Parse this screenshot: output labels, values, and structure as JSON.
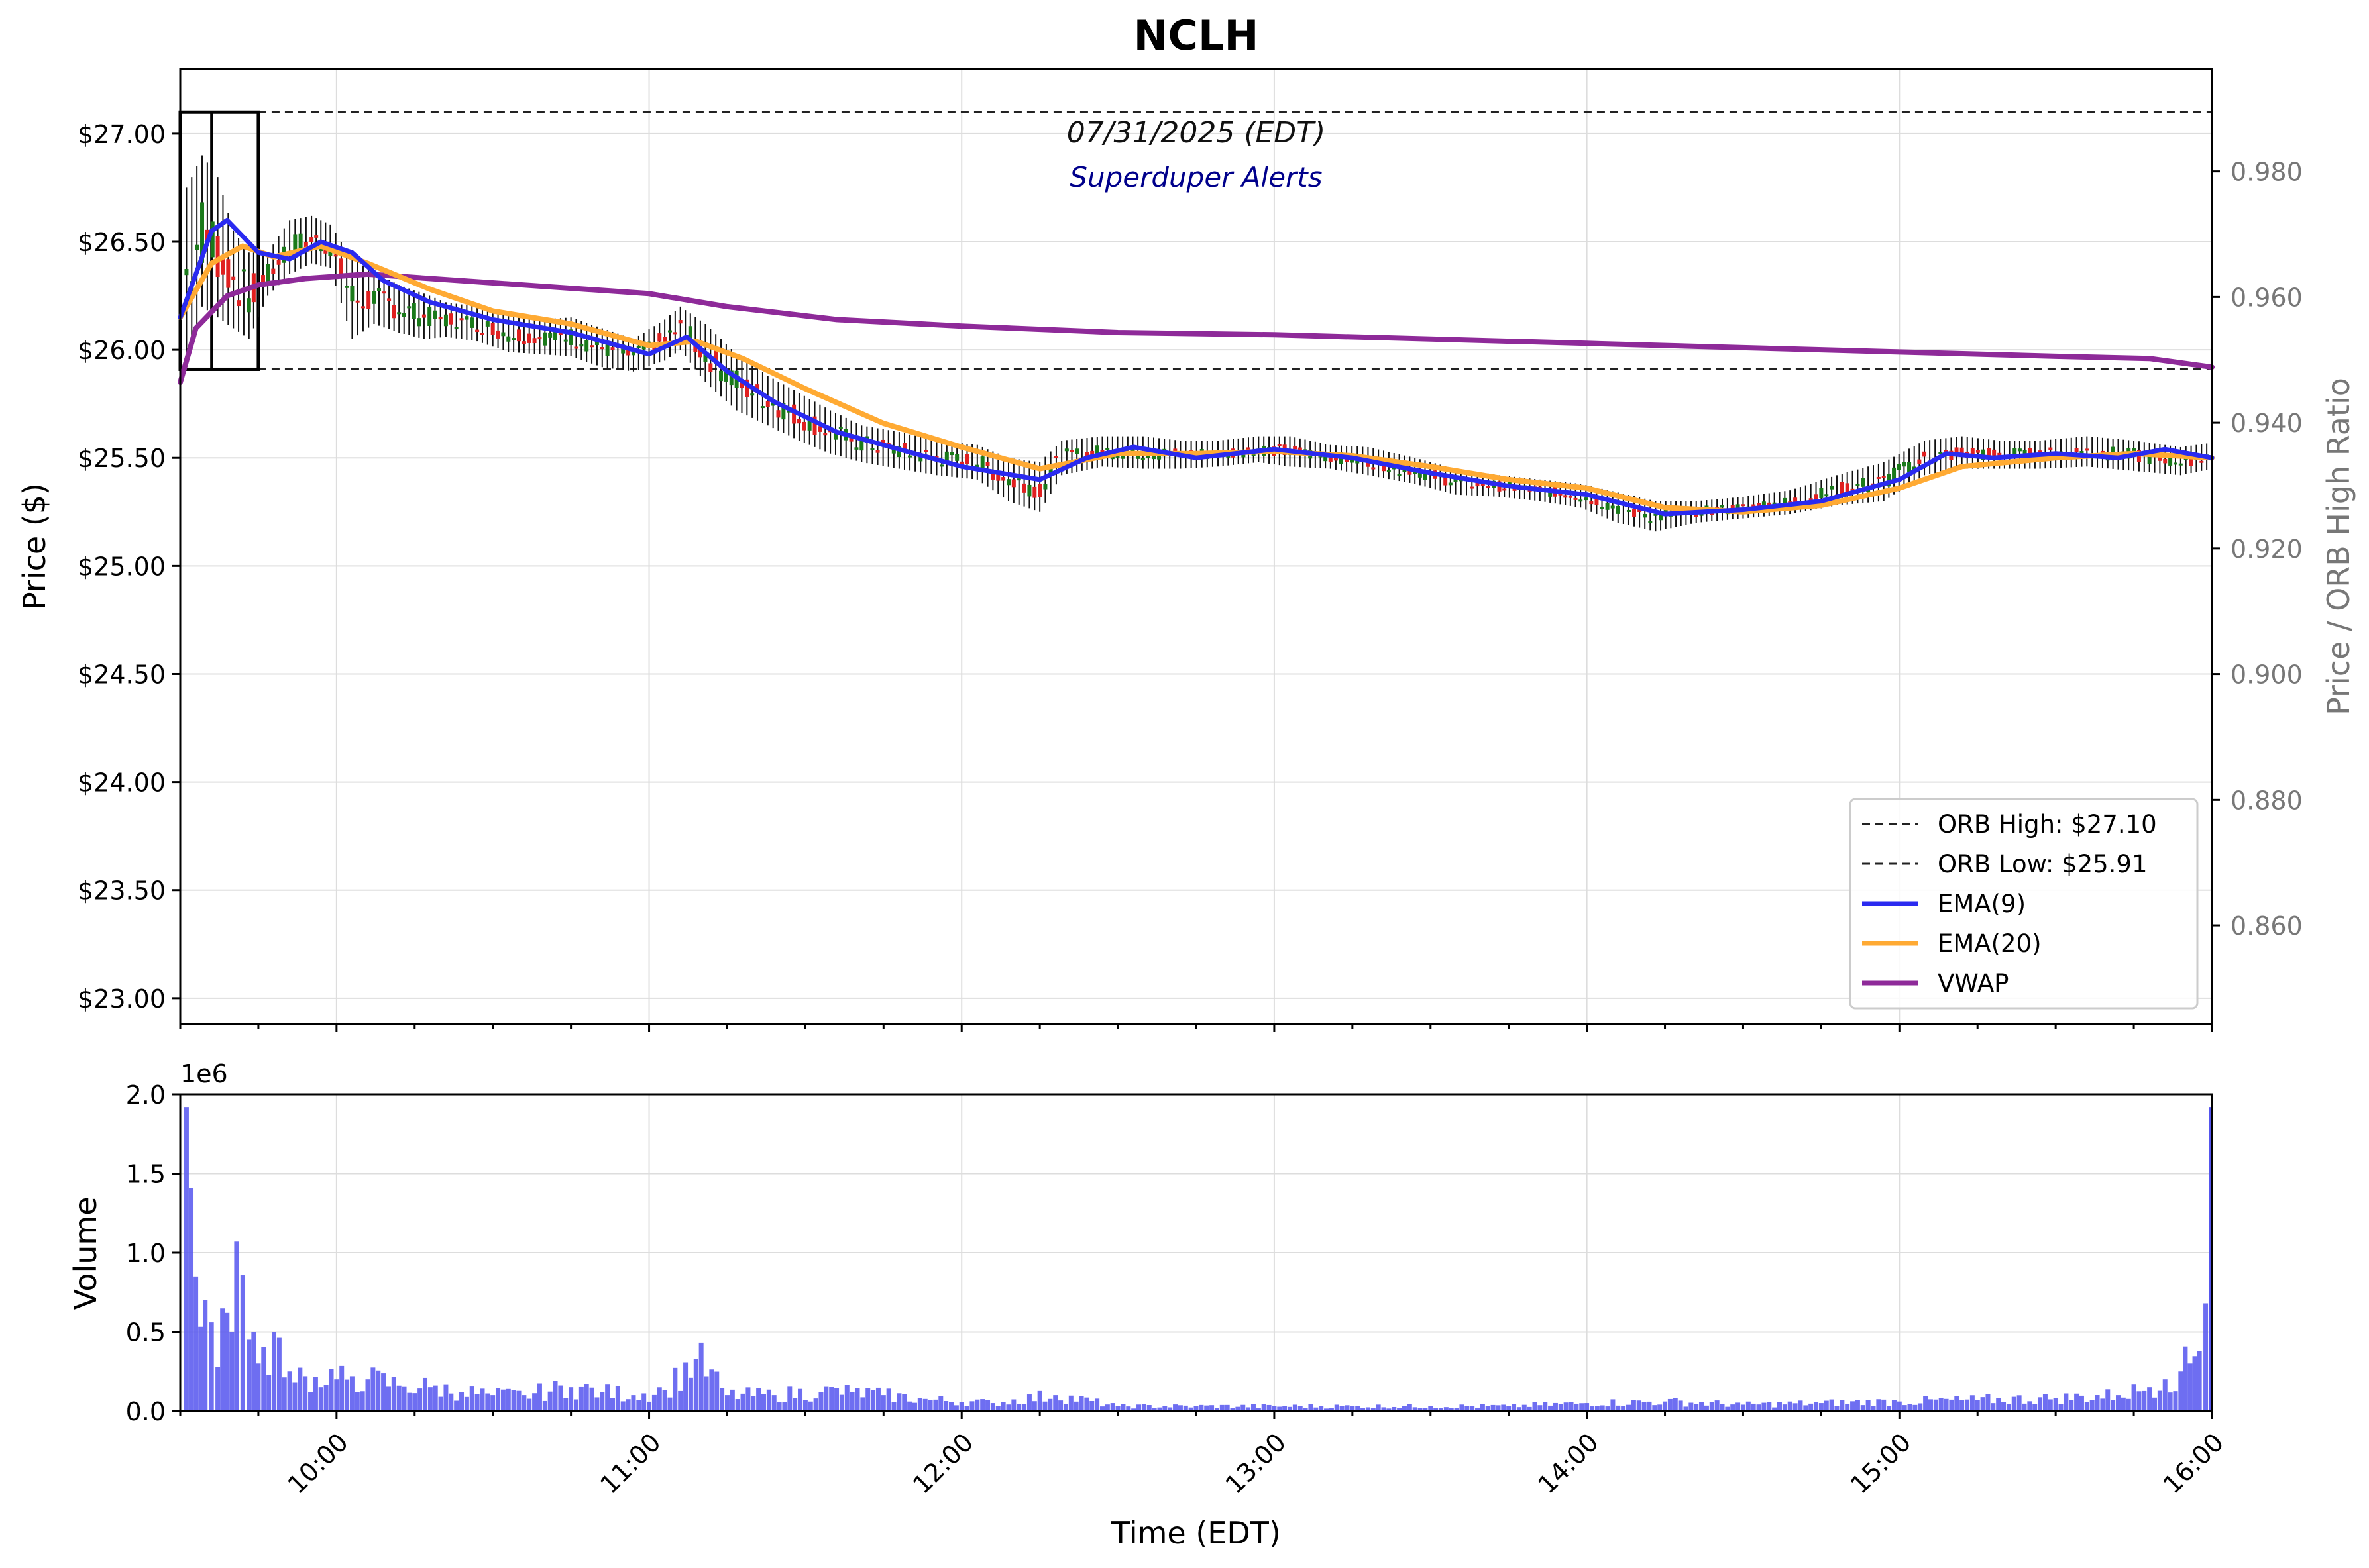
{
  "chart_data": {
    "type": "candlestick",
    "title": "NCLH",
    "date_label": "07/31/2025 (EDT)",
    "subtitle": "Superduper Alerts",
    "price_panel": {
      "ylabel": "Price ($)",
      "ylim": [
        22.88,
        27.3
      ],
      "yticks": [
        "$23.00",
        "$23.50",
        "$24.00",
        "$24.50",
        "$25.00",
        "$25.50",
        "$26.00",
        "$26.50",
        "$27.00"
      ],
      "ytick_values": [
        23.0,
        23.5,
        24.0,
        24.5,
        25.0,
        25.5,
        26.0,
        26.5,
        27.0
      ],
      "right_axis": {
        "ylabel": "Price / ORB High Ratio",
        "yticks": [
          "0.860",
          "0.880",
          "0.900",
          "0.920",
          "0.940",
          "0.960",
          "0.980"
        ],
        "ytick_values": [
          0.86,
          0.88,
          0.9,
          0.92,
          0.94,
          0.96,
          0.98
        ],
        "ylim": [
          0.8443,
          0.9963
        ]
      },
      "orb_high": 27.1,
      "orb_low": 25.91,
      "orb_window": [
        "09:30",
        "09:45"
      ],
      "candles_hl": [
        [
          9.52,
          25.95,
          26.75
        ],
        [
          9.57,
          26.2,
          26.9
        ],
        [
          9.62,
          26.15,
          26.8
        ],
        [
          9.67,
          26.1,
          26.55
        ],
        [
          9.72,
          26.05,
          26.45
        ],
        [
          9.78,
          26.25,
          26.45
        ],
        [
          9.85,
          26.35,
          26.6
        ],
        [
          9.92,
          26.4,
          26.62
        ],
        [
          9.98,
          26.38,
          26.58
        ],
        [
          10.05,
          26.05,
          26.42
        ],
        [
          10.12,
          26.12,
          26.36
        ],
        [
          10.2,
          26.08,
          26.3
        ],
        [
          10.28,
          26.05,
          26.26
        ],
        [
          10.35,
          26.06,
          26.22
        ],
        [
          10.45,
          26.04,
          26.2
        ],
        [
          10.55,
          25.99,
          26.16
        ],
        [
          10.65,
          25.98,
          26.14
        ],
        [
          10.75,
          25.97,
          26.15
        ],
        [
          10.85,
          25.92,
          26.1
        ],
        [
          10.95,
          25.9,
          26.05
        ],
        [
          11.05,
          25.95,
          26.14
        ],
        [
          11.1,
          26.0,
          26.2
        ],
        [
          11.18,
          25.85,
          26.12
        ],
        [
          11.28,
          25.72,
          25.98
        ],
        [
          11.38,
          25.65,
          25.88
        ],
        [
          11.48,
          25.58,
          25.8
        ],
        [
          11.58,
          25.52,
          25.72
        ],
        [
          11.68,
          25.48,
          25.65
        ],
        [
          11.8,
          25.45,
          25.62
        ],
        [
          11.92,
          25.42,
          25.58
        ],
        [
          12.05,
          25.4,
          25.56
        ],
        [
          12.15,
          25.3,
          25.5
        ],
        [
          12.25,
          25.25,
          25.48
        ],
        [
          12.32,
          25.42,
          25.58
        ],
        [
          12.45,
          25.46,
          25.6
        ],
        [
          12.58,
          25.45,
          25.6
        ],
        [
          12.7,
          25.45,
          25.58
        ],
        [
          12.82,
          25.46,
          25.58
        ],
        [
          12.95,
          25.48,
          25.6
        ],
        [
          13.05,
          25.46,
          25.6
        ],
        [
          13.18,
          25.45,
          25.56
        ],
        [
          13.3,
          25.42,
          25.55
        ],
        [
          13.45,
          25.38,
          25.5
        ],
        [
          13.58,
          25.33,
          25.45
        ],
        [
          13.72,
          25.32,
          25.42
        ],
        [
          13.85,
          25.3,
          25.4
        ],
        [
          13.98,
          25.27,
          25.38
        ],
        [
          14.1,
          25.2,
          25.34
        ],
        [
          14.22,
          25.16,
          25.3
        ],
        [
          14.35,
          25.2,
          25.3
        ],
        [
          14.5,
          25.22,
          25.32
        ],
        [
          14.65,
          25.24,
          25.35
        ],
        [
          14.8,
          25.28,
          25.42
        ],
        [
          14.95,
          25.3,
          25.48
        ],
        [
          15.08,
          25.42,
          25.58
        ],
        [
          15.2,
          25.45,
          25.6
        ],
        [
          15.32,
          25.45,
          25.58
        ],
        [
          15.45,
          25.45,
          25.58
        ],
        [
          15.6,
          25.46,
          25.6
        ],
        [
          15.75,
          25.44,
          25.58
        ],
        [
          15.9,
          25.42,
          25.55
        ],
        [
          16.0,
          25.45,
          25.57
        ]
      ],
      "ema9": [
        [
          9.5,
          26.15
        ],
        [
          9.6,
          26.55
        ],
        [
          9.65,
          26.6
        ],
        [
          9.75,
          26.45
        ],
        [
          9.85,
          26.42
        ],
        [
          9.95,
          26.5
        ],
        [
          10.05,
          26.45
        ],
        [
          10.15,
          26.32
        ],
        [
          10.3,
          26.22
        ],
        [
          10.5,
          26.14
        ],
        [
          10.75,
          26.08
        ],
        [
          11.0,
          25.98
        ],
        [
          11.12,
          26.06
        ],
        [
          11.25,
          25.9
        ],
        [
          11.4,
          25.76
        ],
        [
          11.6,
          25.62
        ],
        [
          11.8,
          25.54
        ],
        [
          12.0,
          25.46
        ],
        [
          12.25,
          25.4
        ],
        [
          12.4,
          25.5
        ],
        [
          12.55,
          25.55
        ],
        [
          12.75,
          25.5
        ],
        [
          13.0,
          25.54
        ],
        [
          13.25,
          25.5
        ],
        [
          13.5,
          25.43
        ],
        [
          13.75,
          25.37
        ],
        [
          14.0,
          25.33
        ],
        [
          14.25,
          25.24
        ],
        [
          14.5,
          25.26
        ],
        [
          14.75,
          25.3
        ],
        [
          15.0,
          25.4
        ],
        [
          15.15,
          25.52
        ],
        [
          15.3,
          25.5
        ],
        [
          15.5,
          25.52
        ],
        [
          15.7,
          25.5
        ],
        [
          15.85,
          25.54
        ],
        [
          16.0,
          25.5
        ]
      ],
      "ema20": [
        [
          9.5,
          26.15
        ],
        [
          9.6,
          26.4
        ],
        [
          9.7,
          26.48
        ],
        [
          9.8,
          26.43
        ],
        [
          9.95,
          26.48
        ],
        [
          10.1,
          26.4
        ],
        [
          10.3,
          26.28
        ],
        [
          10.5,
          26.18
        ],
        [
          10.75,
          26.12
        ],
        [
          11.0,
          26.02
        ],
        [
          11.15,
          26.04
        ],
        [
          11.3,
          25.96
        ],
        [
          11.5,
          25.82
        ],
        [
          11.75,
          25.66
        ],
        [
          12.0,
          25.55
        ],
        [
          12.25,
          25.45
        ],
        [
          12.5,
          25.52
        ],
        [
          12.75,
          25.52
        ],
        [
          13.0,
          25.53
        ],
        [
          13.25,
          25.51
        ],
        [
          13.5,
          25.46
        ],
        [
          13.75,
          25.4
        ],
        [
          14.0,
          25.36
        ],
        [
          14.25,
          25.27
        ],
        [
          14.5,
          25.25
        ],
        [
          14.75,
          25.28
        ],
        [
          15.0,
          25.36
        ],
        [
          15.2,
          25.46
        ],
        [
          15.5,
          25.5
        ],
        [
          15.75,
          25.52
        ],
        [
          16.0,
          25.5
        ]
      ],
      "vwap": [
        [
          9.5,
          25.85
        ],
        [
          9.55,
          26.1
        ],
        [
          9.65,
          26.25
        ],
        [
          9.75,
          26.3
        ],
        [
          9.9,
          26.33
        ],
        [
          10.1,
          26.35
        ],
        [
          10.5,
          26.31
        ],
        [
          11.0,
          26.26
        ],
        [
          11.25,
          26.2
        ],
        [
          11.6,
          26.14
        ],
        [
          12.0,
          26.11
        ],
        [
          12.5,
          26.08
        ],
        [
          13.0,
          26.07
        ],
        [
          13.5,
          26.05
        ],
        [
          14.0,
          26.03
        ],
        [
          14.5,
          26.01
        ],
        [
          15.0,
          25.99
        ],
        [
          15.5,
          25.97
        ],
        [
          15.8,
          25.96
        ],
        [
          16.0,
          25.92
        ]
      ],
      "legend": {
        "placement": "lower-right",
        "entries": [
          {
            "label": "ORB High: $27.10",
            "color": "#222222",
            "style": "dashed"
          },
          {
            "label": "ORB Low: $25.91",
            "color": "#222222",
            "style": "dashed"
          },
          {
            "label": "EMA(9)",
            "color": "#2a2af0",
            "style": "solid"
          },
          {
            "label": "EMA(20)",
            "color": "#ffaa33",
            "style": "solid"
          },
          {
            "label": "VWAP",
            "color": "#8e2a99",
            "style": "solid"
          }
        ]
      }
    },
    "volume_panel": {
      "ylabel": "Volume",
      "offset_label": "1e6",
      "ylim": [
        0,
        2.0
      ],
      "yticks": [
        "0.0",
        "0.5",
        "1.0",
        "1.5",
        "2.0"
      ],
      "ytick_values": [
        0,
        0.5,
        1.0,
        1.5,
        2.0
      ],
      "bar_color": "#5555ee",
      "bars_millions": [
        [
          9.52,
          1.92
        ],
        [
          9.55,
          0.85
        ],
        [
          9.58,
          0.7
        ],
        [
          9.62,
          0.28
        ],
        [
          9.65,
          0.62
        ],
        [
          9.68,
          1.07
        ],
        [
          9.72,
          0.45
        ],
        [
          9.75,
          0.3
        ],
        [
          9.8,
          0.5
        ],
        [
          9.85,
          0.25
        ],
        [
          9.9,
          0.22
        ],
        [
          9.95,
          0.15
        ],
        [
          10.0,
          0.2
        ],
        [
          10.05,
          0.22
        ],
        [
          10.1,
          0.2
        ],
        [
          10.2,
          0.16
        ],
        [
          10.3,
          0.15
        ],
        [
          10.4,
          0.12
        ],
        [
          10.5,
          0.1
        ],
        [
          10.6,
          0.1
        ],
        [
          10.75,
          0.15
        ],
        [
          10.85,
          0.12
        ],
        [
          10.95,
          0.1
        ],
        [
          11.05,
          0.13
        ],
        [
          11.15,
          0.33
        ],
        [
          11.25,
          0.1
        ],
        [
          11.4,
          0.1
        ],
        [
          11.55,
          0.12
        ],
        [
          11.65,
          0.12
        ],
        [
          11.75,
          0.1
        ],
        [
          11.9,
          0.07
        ],
        [
          12.1,
          0.05
        ],
        [
          12.3,
          0.1
        ],
        [
          12.5,
          0.03
        ],
        [
          12.75,
          0.03
        ],
        [
          13.0,
          0.03
        ],
        [
          13.25,
          0.03
        ],
        [
          13.5,
          0.03
        ],
        [
          13.75,
          0.03
        ],
        [
          14.0,
          0.05
        ],
        [
          14.25,
          0.06
        ],
        [
          14.5,
          0.04
        ],
        [
          14.75,
          0.05
        ],
        [
          15.0,
          0.06
        ],
        [
          15.25,
          0.07
        ],
        [
          15.5,
          0.08
        ],
        [
          15.7,
          0.1
        ],
        [
          15.8,
          0.15
        ],
        [
          15.85,
          0.2
        ],
        [
          15.9,
          0.25
        ],
        [
          15.93,
          0.3
        ],
        [
          15.96,
          0.38
        ],
        [
          15.98,
          0.68
        ],
        [
          16.0,
          1.92
        ]
      ]
    },
    "xlabel": "Time (EDT)",
    "xlim": [
      9.5,
      16.0
    ],
    "xticks": [
      "10:00",
      "11:00",
      "12:00",
      "13:00",
      "14:00",
      "15:00",
      "16:00"
    ],
    "xtick_values": [
      10,
      11,
      12,
      13,
      14,
      15,
      16
    ],
    "grid": true,
    "colors": {
      "up": "#1a7a1a",
      "down": "#e02020",
      "wick": "#111111"
    }
  }
}
